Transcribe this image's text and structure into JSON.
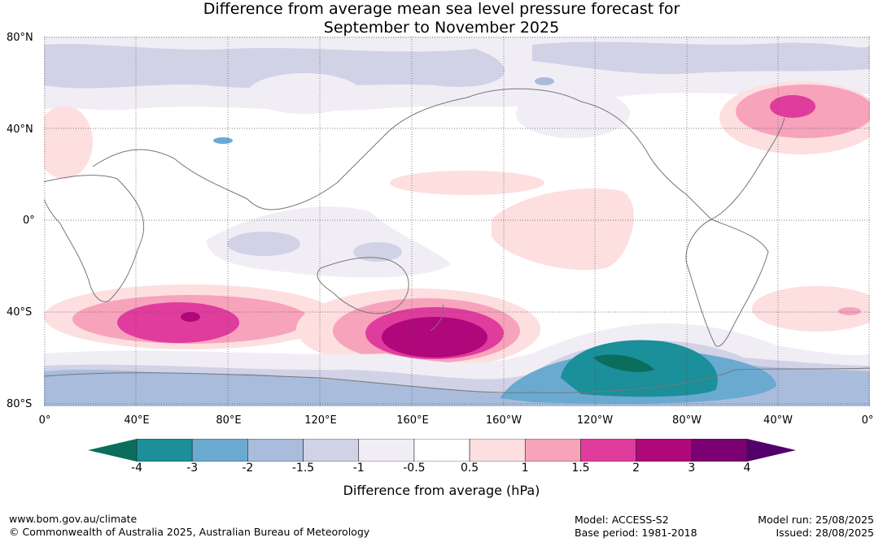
{
  "title_line1": "Difference from average mean sea level pressure forecast for",
  "title_line2": "September to November 2025",
  "lat_labels": [
    "80°N",
    "40°N",
    "0°",
    "40°S",
    "80°S"
  ],
  "lon_labels": [
    "0°",
    "40°E",
    "80°E",
    "120°E",
    "160°E",
    "160°W",
    "120°W",
    "80°W",
    "40°W",
    "0°"
  ],
  "colorbar": {
    "ticks": [
      "-4",
      "-3",
      "-2",
      "-1.5",
      "-1",
      "-0.5",
      "0.5",
      "1",
      "1.5",
      "2",
      "3",
      "4"
    ],
    "colors": [
      "#0b6e5d",
      "#1b8f9a",
      "#6aaad1",
      "#a9bcdc",
      "#d1d2e6",
      "#f1edf5",
      "#ffffff",
      "#fddfe0",
      "#f7a3bc",
      "#df3c9d",
      "#b0077b",
      "#7b0071",
      "#52006a"
    ],
    "label": "Difference from average (hPa)"
  },
  "footer": {
    "website": "www.bom.gov.au/climate",
    "copyright": "© Commonwealth of Australia 2025, Australian Bureau of Meteorology",
    "model": "Model: ACCESS-S2",
    "base_period": "Base period: 1981-2018",
    "model_run": "Model run: 25/08/2025",
    "issued": "Issued: 28/08/2025"
  }
}
